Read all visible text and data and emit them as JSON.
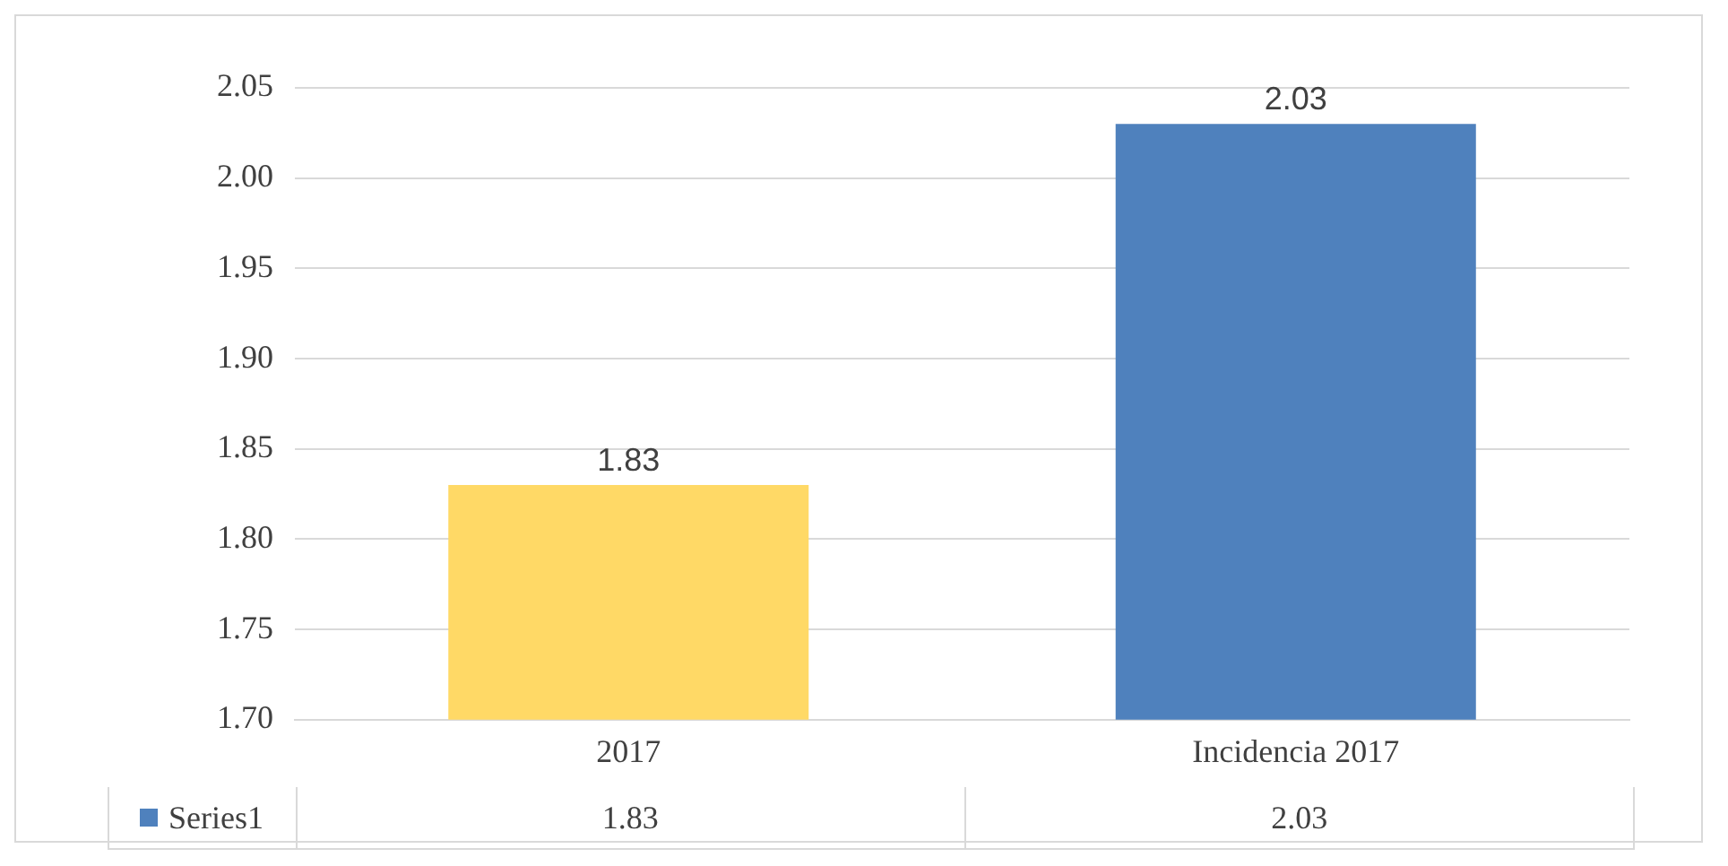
{
  "chart_data": {
    "type": "bar",
    "categories": [
      "2017",
      "Incidencia 2017"
    ],
    "series": [
      {
        "name": "Series1",
        "color": "#4f81bd",
        "colors": [
          "#ffd966",
          "#4f81bd"
        ],
        "values": [
          1.83,
          2.03
        ],
        "value_labels": [
          "1.83",
          "2.03"
        ]
      }
    ],
    "ylim": [
      1.7,
      2.05
    ],
    "yticks": [
      {
        "value": 1.7,
        "label": "1.70"
      },
      {
        "value": 1.75,
        "label": "1.75"
      },
      {
        "value": 1.8,
        "label": "1.80"
      },
      {
        "value": 1.85,
        "label": "1.85"
      },
      {
        "value": 1.9,
        "label": "1.90"
      },
      {
        "value": 1.95,
        "label": "1.95"
      },
      {
        "value": 2.0,
        "label": "2.00"
      },
      {
        "value": 2.05,
        "label": "2.05"
      }
    ],
    "grid": "y",
    "legend": "bottom"
  }
}
